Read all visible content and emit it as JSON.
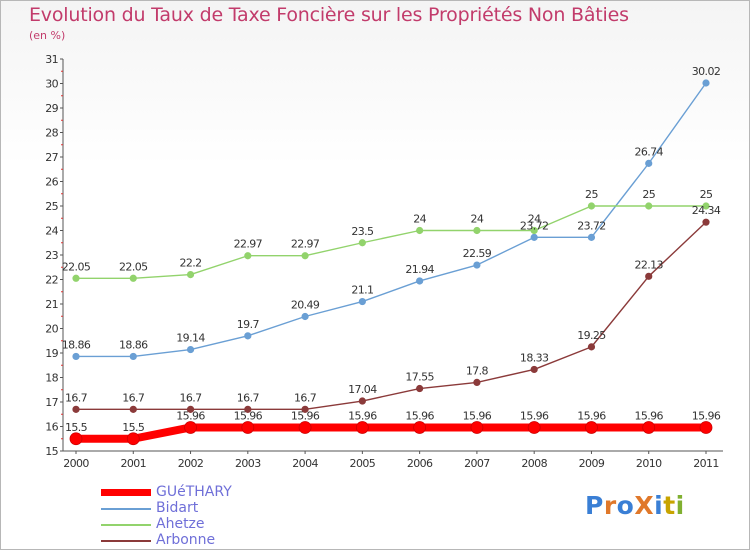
{
  "title": "Evolution du Taux de Taxe Foncière sur les Propriétés Non Bâties",
  "unit": "(en %)",
  "logo": "ProXiti",
  "chart_data": {
    "type": "line",
    "x": [
      "2000",
      "2001",
      "2002",
      "2003",
      "2004",
      "2005",
      "2006",
      "2007",
      "2008",
      "2009",
      "2010",
      "2011"
    ],
    "ylim": [
      15,
      31
    ],
    "yticks": [
      15,
      16,
      17,
      18,
      19,
      20,
      21,
      22,
      23,
      24,
      25,
      26,
      27,
      28,
      29,
      30,
      31
    ],
    "grid": false,
    "legend_position": "bottom-left",
    "series": [
      {
        "name": "GUéTHARY",
        "color": "#ff0000",
        "values": [
          15.5,
          15.5,
          15.96,
          15.96,
          15.96,
          15.96,
          15.96,
          15.96,
          15.96,
          15.96,
          15.96,
          15.96
        ],
        "labels": [
          "15.5",
          "15.5",
          "15.96",
          "15.96",
          "15.96",
          "15.96",
          "15.96",
          "15.96",
          "15.96",
          "15.96",
          "15.96",
          "15.96"
        ]
      },
      {
        "name": "Bidart",
        "color": "#6a9fd4",
        "values": [
          18.86,
          18.86,
          19.14,
          19.7,
          20.49,
          21.1,
          21.94,
          22.59,
          23.72,
          23.72,
          26.74,
          30.02
        ],
        "labels": [
          "18.86",
          "18.86",
          "19.14",
          "19.7",
          "20.49",
          "21.1",
          "21.94",
          "22.59",
          "23.72",
          "23.72",
          "26.74",
          "30.02"
        ]
      },
      {
        "name": "Ahetze",
        "color": "#92d36c",
        "values": [
          22.05,
          22.05,
          22.2,
          22.97,
          22.97,
          23.5,
          24,
          24,
          24,
          25,
          25,
          25
        ],
        "labels": [
          "22.05",
          "22.05",
          "22.2",
          "22.97",
          "22.97",
          "23.5",
          "24",
          "24",
          "24",
          "25",
          "25",
          "25"
        ]
      },
      {
        "name": "Arbonne",
        "color": "#8b3a3a",
        "values": [
          16.7,
          16.7,
          16.7,
          16.7,
          16.7,
          17.04,
          17.55,
          17.8,
          18.33,
          19.25,
          22.13,
          24.34
        ],
        "labels": [
          "16.7",
          "16.7",
          "16.7",
          "16.7",
          "16.7",
          "17.04",
          "17.55",
          "17.8",
          "18.33",
          "19.25",
          "22.13",
          "24.34"
        ]
      }
    ]
  }
}
